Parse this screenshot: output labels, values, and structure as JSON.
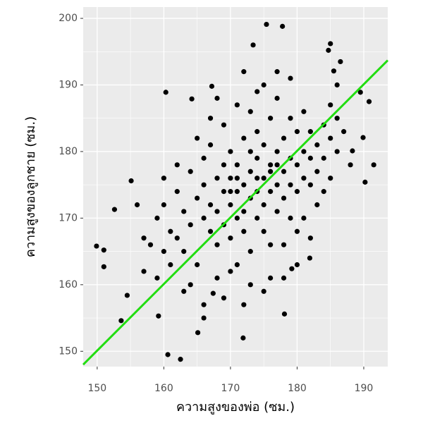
{
  "chart_data": {
    "type": "scatter",
    "x_label": "ความสูงของพ่อ (ซม.)",
    "y_label": "ความสูงของลูกชาย (ซม.)",
    "xlim": [
      147.9,
      193.6
    ],
    "ylim": [
      147.7,
      201.7
    ],
    "xticks": [
      150,
      160,
      170,
      180,
      190
    ],
    "yticks": [
      150,
      160,
      170,
      180,
      190,
      200
    ],
    "grid": true,
    "series": [
      {
        "color": "#000000",
        "x": [
          149.9,
          151,
          151,
          152.6,
          153.6,
          154.5,
          155.1,
          160.3,
          160.6,
          162.5,
          164.2,
          167.2,
          175.4,
          177.8,
          173.4,
          185,
          184.7,
          186.5,
          185.5,
          189.5,
          190.8,
          191.5,
          190.2,
          189.9,
          171.9,
          178.1,
          165.1,
          166,
          159.2,
          167.4,
          179.2,
          181.9,
          188.3,
          158,
          159,
          160,
          161,
          162,
          163,
          163,
          164,
          164,
          165,
          165,
          166,
          166,
          166,
          167,
          167,
          167,
          168,
          168,
          168,
          169,
          169,
          169,
          169,
          170,
          170,
          170,
          170,
          171,
          171,
          171,
          171,
          172,
          172,
          172,
          172,
          173,
          173,
          173,
          173,
          174,
          174,
          174,
          174,
          175,
          175,
          175,
          175,
          176,
          176,
          176,
          176,
          177,
          177,
          177,
          177,
          178,
          178,
          178,
          179,
          179,
          179,
          179,
          180,
          180,
          180,
          181,
          181,
          181,
          182,
          182,
          182,
          183,
          183,
          184,
          184,
          185,
          185,
          186,
          186,
          162,
          164,
          167,
          168,
          170,
          171,
          173,
          175,
          176,
          178,
          179,
          180,
          181,
          183,
          184,
          156,
          157,
          160,
          161,
          165,
          168,
          172,
          174,
          177,
          185,
          187,
          188,
          163,
          166,
          169,
          172,
          175,
          178,
          180,
          182,
          157,
          159,
          160,
          162,
          186,
          174,
          171,
          176,
          170,
          173,
          177
        ],
        "values": [
          165.8,
          165.2,
          162.7,
          171.3,
          154.6,
          158.4,
          175.6,
          188.9,
          149.5,
          148.8,
          187.9,
          189.8,
          199.1,
          198.8,
          196,
          196.2,
          195.2,
          193.5,
          192.1,
          188.9,
          187.5,
          178,
          175.4,
          182.1,
          152,
          155.6,
          152.8,
          155,
          155.3,
          158.7,
          162.4,
          164,
          180.1,
          166,
          170,
          172,
          168,
          174,
          165,
          171,
          177,
          169,
          173,
          163,
          179,
          170,
          175,
          168,
          172,
          181,
          166,
          176,
          171,
          174,
          169,
          178,
          184,
          172,
          167,
          176,
          180,
          170,
          174,
          163,
          178,
          175,
          171,
          182,
          168,
          177,
          173,
          165,
          186,
          174,
          179,
          170,
          183,
          176,
          172,
          168,
          181,
          178,
          174,
          185,
          166,
          175,
          180,
          171,
          188,
          177,
          182,
          173,
          179,
          175,
          185,
          170,
          178,
          183,
          174,
          180,
          176,
          186,
          179,
          175,
          183,
          181,
          177,
          184,
          179,
          182,
          187,
          180,
          185,
          178,
          160,
          185,
          161,
          162,
          187,
          160,
          190,
          161,
          166,
          191,
          168,
          170,
          172,
          174,
          172,
          167,
          176,
          163,
          182,
          188,
          192,
          189,
          192,
          176,
          183,
          178,
          159,
          157,
          158,
          157,
          159,
          161,
          163,
          167,
          162,
          161,
          165,
          167,
          190,
          176,
          176,
          177,
          174,
          180,
          178
        ]
      }
    ],
    "line": {
      "x": [
        147.9,
        193.6
      ],
      "y": [
        148.0,
        193.7
      ],
      "color": "#22dd11"
    }
  }
}
